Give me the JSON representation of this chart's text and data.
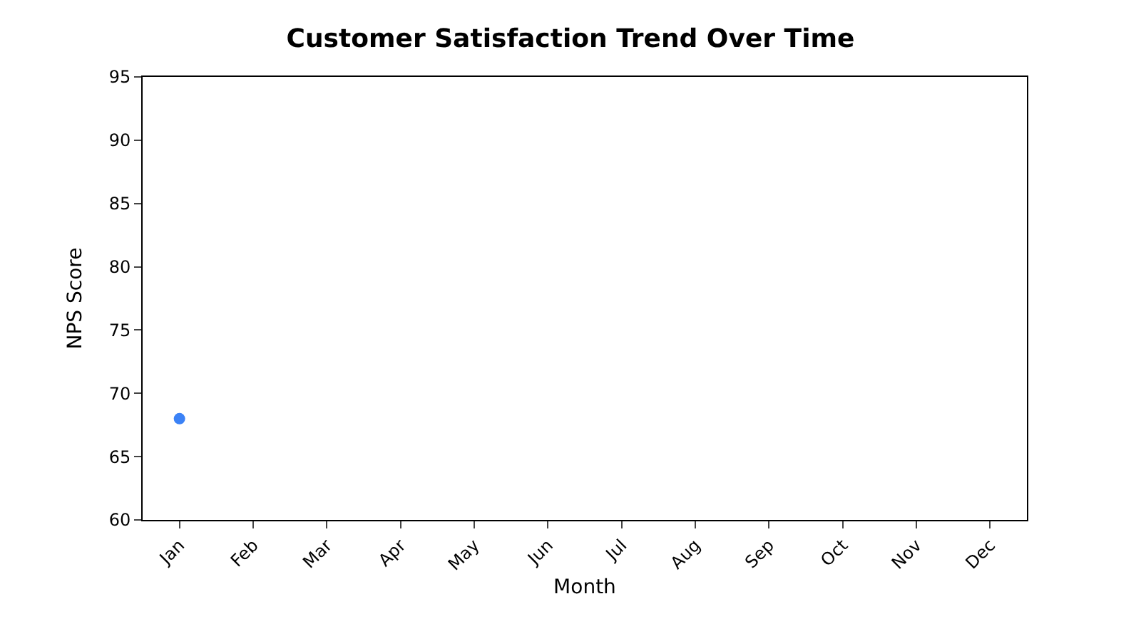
{
  "chart_data": {
    "type": "scatter",
    "title": "Customer Satisfaction Trend Over Time",
    "xlabel": "Month",
    "ylabel": "NPS Score",
    "categories": [
      "Jan",
      "Feb",
      "Mar",
      "Apr",
      "May",
      "Jun",
      "Jul",
      "Aug",
      "Sep",
      "Oct",
      "Nov",
      "Dec"
    ],
    "series": [
      {
        "color": "#3b82f6",
        "values": [
          68,
          null,
          null,
          null,
          null,
          null,
          null,
          null,
          null,
          null,
          null,
          null
        ]
      }
    ],
    "ylim": [
      60,
      95
    ],
    "yticks": [
      60,
      65,
      70,
      75,
      80,
      85,
      90,
      95
    ]
  }
}
